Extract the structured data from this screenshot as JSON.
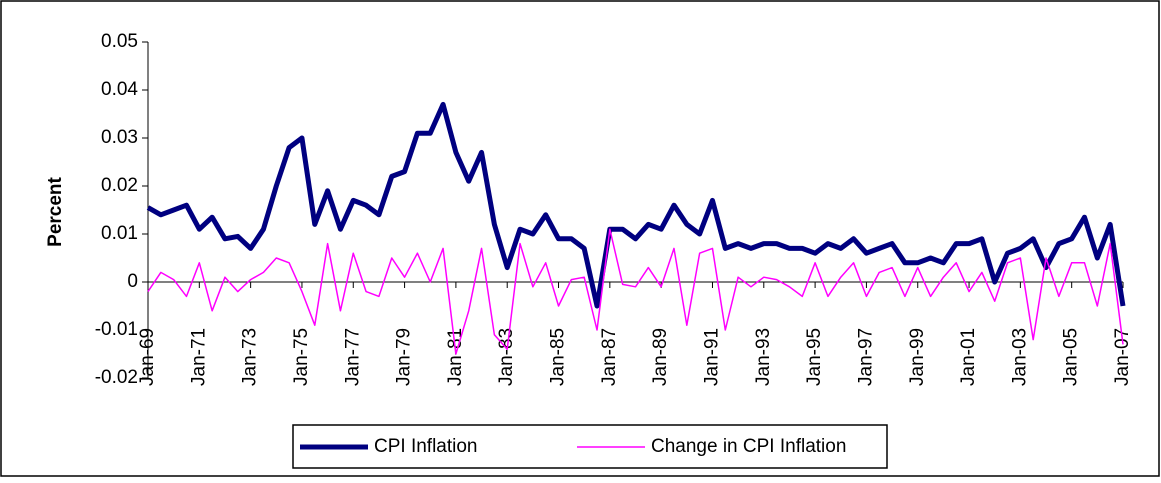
{
  "chart_data": {
    "type": "line",
    "y_label": "Percent",
    "categories": [
      "Jan-69",
      null,
      null,
      null,
      "Jan-71",
      null,
      null,
      null,
      "Jan-73",
      null,
      null,
      null,
      "Jan-75",
      null,
      null,
      null,
      "Jan-77",
      null,
      null,
      null,
      "Jan-79",
      null,
      null,
      null,
      "Jan-81",
      null,
      null,
      null,
      "Jan-83",
      null,
      null,
      null,
      "Jan-85",
      null,
      null,
      null,
      "Jan-87",
      null,
      null,
      null,
      "Jan-89",
      null,
      null,
      null,
      "Jan-91",
      null,
      null,
      null,
      "Jan-93",
      null,
      null,
      null,
      "Jan-95",
      null,
      null,
      null,
      "Jan-97",
      null,
      null,
      null,
      "Jan-99",
      null,
      null,
      null,
      "Jan-01",
      null,
      null,
      null,
      "Jan-03",
      null,
      null,
      null,
      "Jan-05",
      null,
      null,
      null,
      "Jan-07"
    ],
    "series": [
      {
        "name": "CPI Inflation",
        "color": "#000080",
        "width": 5,
        "values": [
          0.0155,
          0.014,
          0.015,
          0.016,
          0.011,
          0.0135,
          0.009,
          0.0095,
          0.007,
          0.011,
          0.02,
          0.028,
          0.03,
          0.012,
          0.019,
          0.011,
          0.017,
          0.016,
          0.014,
          0.022,
          0.023,
          0.031,
          0.031,
          0.037,
          0.027,
          0.021,
          0.027,
          0.012,
          0.003,
          0.011,
          0.01,
          0.014,
          0.009,
          0.009,
          0.007,
          -0.005,
          0.011,
          0.011,
          0.009,
          0.012,
          0.011,
          0.016,
          0.012,
          0.01,
          0.017,
          0.007,
          0.008,
          0.007,
          0.008,
          0.008,
          0.007,
          0.007,
          0.006,
          0.008,
          0.007,
          0.009,
          0.006,
          0.007,
          0.008,
          0.004,
          0.004,
          0.005,
          0.004,
          0.008,
          0.008,
          0.009,
          0.0,
          0.006,
          0.007,
          0.009,
          0.003,
          0.008,
          0.009,
          0.0135,
          0.005,
          0.012,
          -0.005
        ]
      },
      {
        "name": "Change in CPI Inflation",
        "color": "#ff00ff",
        "width": 1.5,
        "values": [
          -0.002,
          0.002,
          0.0005,
          -0.003,
          0.004,
          -0.006,
          0.001,
          -0.002,
          0.0005,
          0.002,
          0.005,
          0.004,
          -0.002,
          -0.009,
          0.008,
          -0.006,
          0.006,
          -0.002,
          -0.003,
          0.005,
          0.001,
          0.006,
          0.0,
          0.007,
          -0.015,
          -0.006,
          0.007,
          -0.011,
          -0.014,
          0.008,
          -0.001,
          0.004,
          -0.005,
          0.0005,
          0.001,
          -0.01,
          0.011,
          -0.0005,
          -0.001,
          0.003,
          -0.001,
          0.007,
          -0.009,
          0.006,
          0.007,
          -0.01,
          0.001,
          -0.001,
          0.001,
          0.0005,
          -0.001,
          -0.003,
          0.004,
          -0.003,
          0.001,
          0.004,
          -0.003,
          0.002,
          0.003,
          -0.003,
          0.003,
          -0.003,
          0.001,
          0.004,
          -0.002,
          0.002,
          -0.004,
          0.004,
          0.005,
          -0.012,
          0.005,
          -0.003,
          0.004,
          0.004,
          -0.005,
          0.008,
          -0.013
        ]
      }
    ],
    "ylim": [
      -0.02,
      0.05
    ],
    "yticks": [
      -0.02,
      -0.01,
      0,
      0.01,
      0.02,
      0.03,
      0.04,
      0.05
    ],
    "grid": false,
    "legend": "bottom"
  }
}
